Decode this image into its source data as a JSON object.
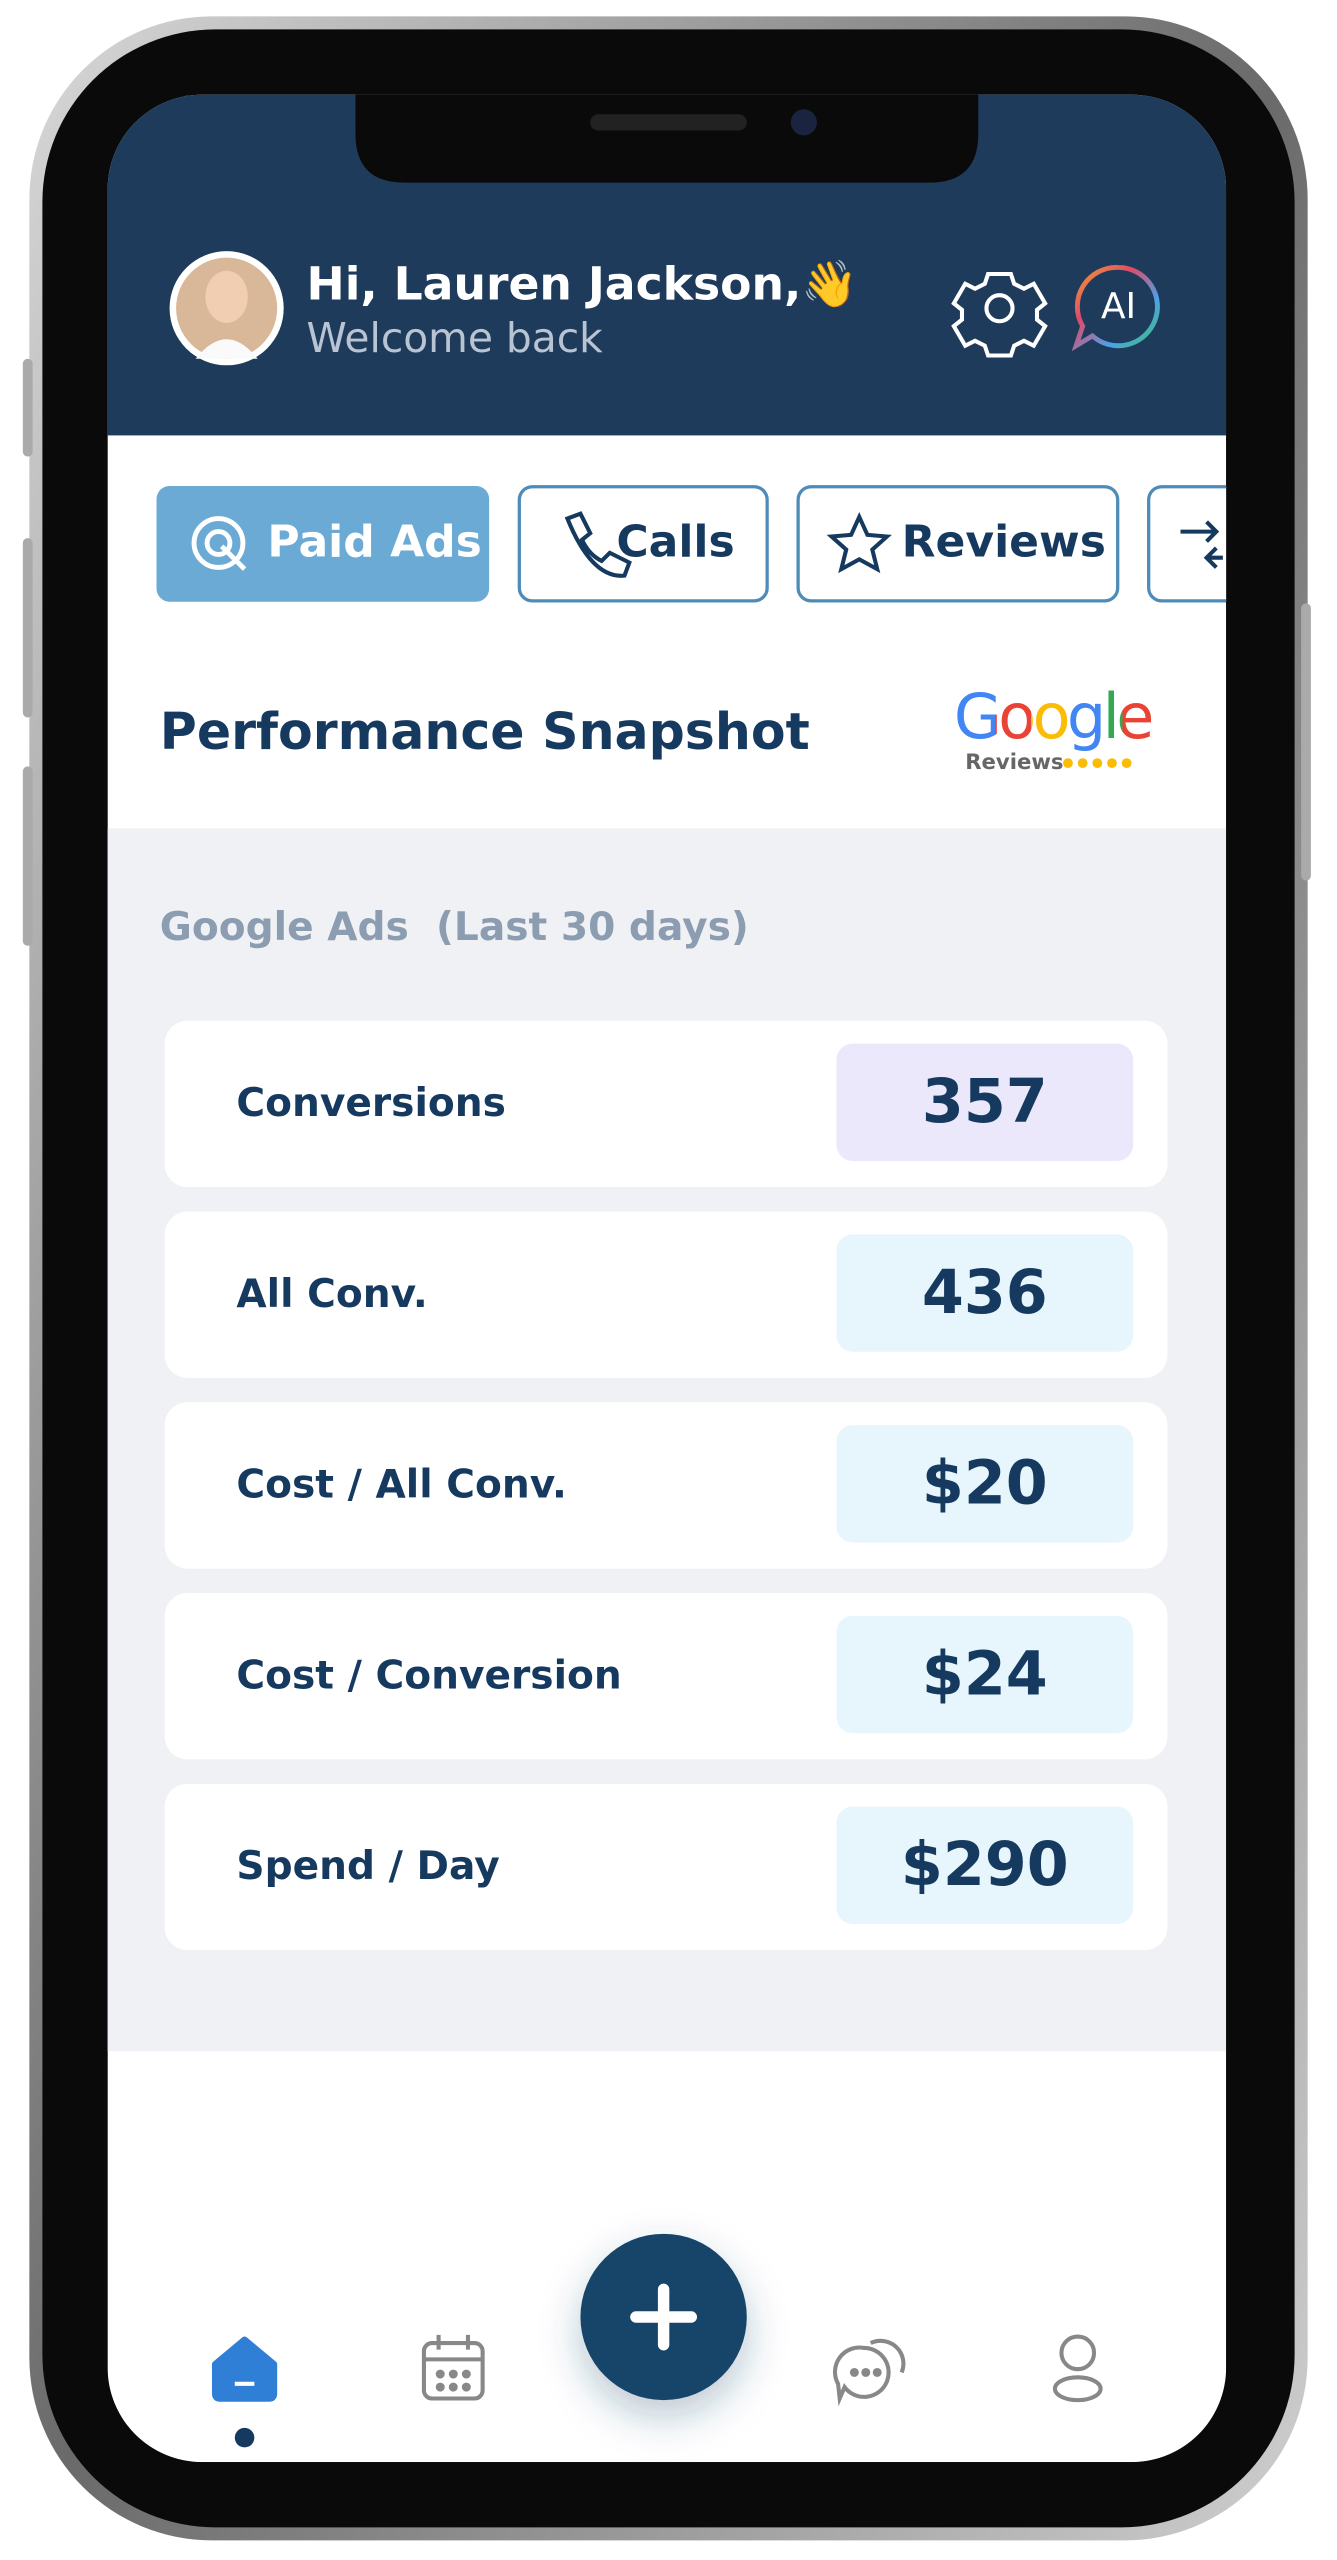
{
  "header": {
    "greeting": "Hi, Lauren Jackson,👋",
    "subtitle": "Welcome back",
    "ai_button": "AI"
  },
  "tabs": [
    "Paid Ads",
    "Calls",
    "Reviews"
  ],
  "section": {
    "title": "Performance Snapshot",
    "logo_text": "Google",
    "logo_caption": "Reviews"
  },
  "ads": {
    "label": "Google Ads  (Last 30 days)",
    "metrics": [
      {
        "label": "Conversions",
        "value": "357"
      },
      {
        "label": "All Conv.",
        "value": "436"
      },
      {
        "label": "Cost / All Conv.",
        "value": "$20"
      },
      {
        "label": "Cost / Conversion",
        "value": "$24"
      },
      {
        "label": "Spend / Day",
        "value": "$290"
      }
    ]
  }
}
